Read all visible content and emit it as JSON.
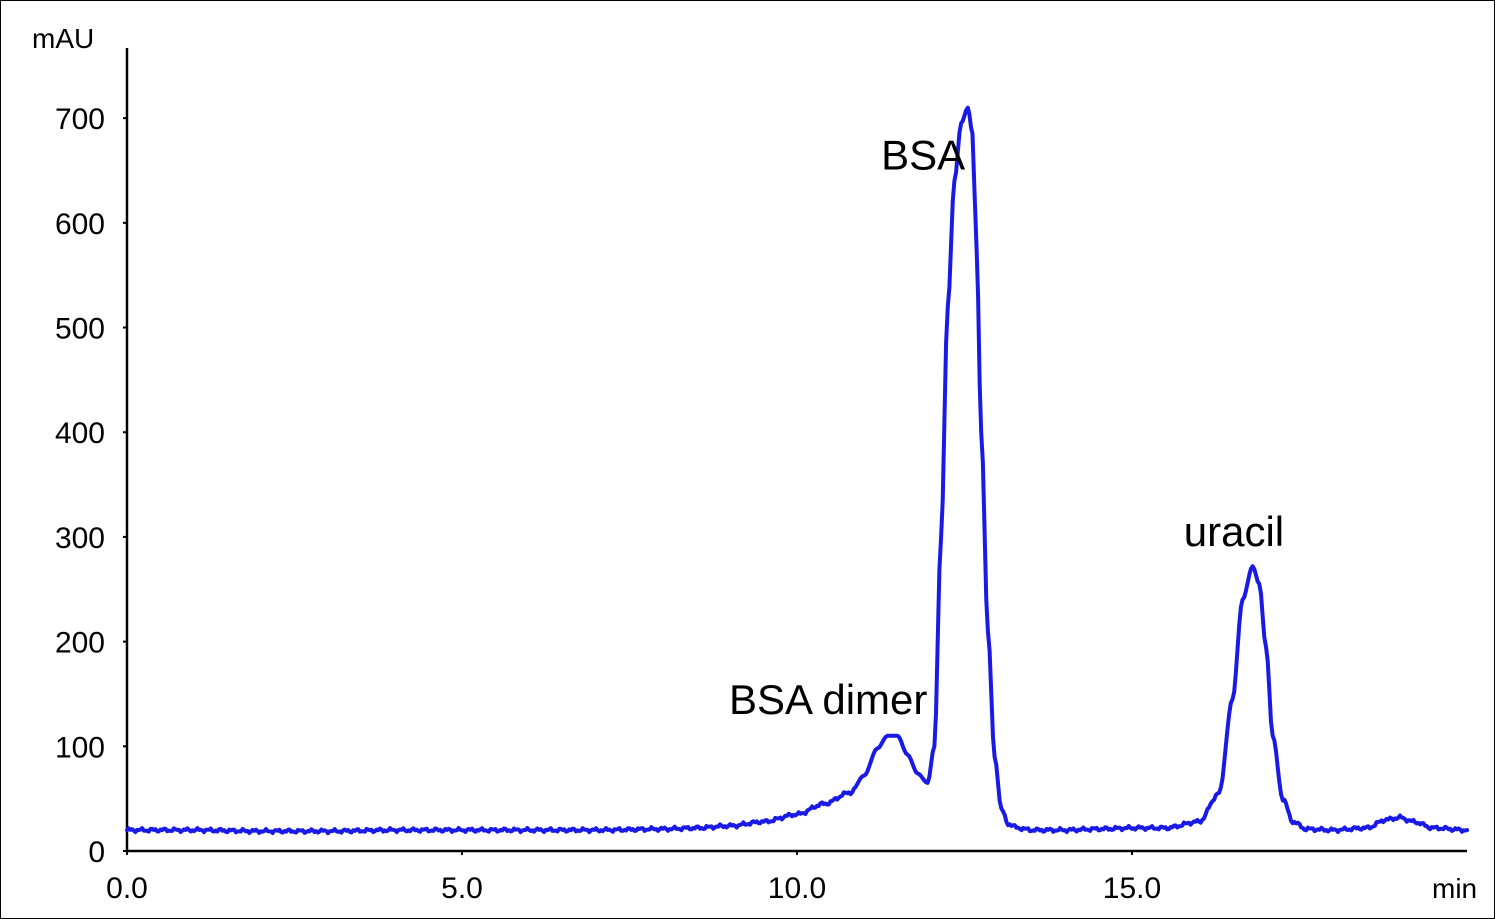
{
  "chart_data": {
    "type": "line",
    "title": "",
    "xlabel": "min",
    "ylabel": "mAU",
    "xlim": [
      0.0,
      20.0
    ],
    "ylim": [
      0,
      700
    ],
    "x_ticks": [
      "0.0",
      "5.0",
      "10.0",
      "15.0"
    ],
    "y_ticks": [
      "0",
      "100",
      "200",
      "300",
      "400",
      "500",
      "600",
      "700"
    ],
    "grid": false,
    "legend": "none",
    "series": [
      {
        "color": "#1a1ae6",
        "x": [
          0.0,
          1.0,
          2.0,
          3.0,
          4.0,
          5.0,
          6.0,
          7.0,
          8.0,
          8.5,
          9.0,
          9.5,
          10.0,
          10.4,
          10.8,
          11.0,
          11.2,
          11.35,
          11.5,
          11.65,
          11.8,
          11.95,
          12.05,
          12.15,
          12.25,
          12.35,
          12.45,
          12.55,
          12.62,
          12.68,
          12.75,
          12.85,
          12.95,
          13.05,
          13.15,
          13.3,
          13.5,
          14.0,
          14.5,
          15.0,
          15.5,
          16.0,
          16.3,
          16.5,
          16.65,
          16.8,
          16.9,
          17.0,
          17.1,
          17.25,
          17.4,
          17.6,
          18.0,
          18.5,
          18.8,
          19.0,
          19.2,
          19.5,
          20.0
        ],
        "y": [
          20,
          20,
          19,
          19,
          20,
          20,
          20,
          20,
          21,
          22,
          24,
          28,
          35,
          45,
          56,
          72,
          98,
          110,
          110,
          92,
          74,
          65,
          100,
          300,
          520,
          640,
          695,
          710,
          685,
          575,
          400,
          210,
          90,
          40,
          26,
          22,
          20,
          20,
          21,
          22,
          22,
          28,
          55,
          145,
          240,
          272,
          255,
          195,
          110,
          50,
          28,
          21,
          20,
          22,
          30,
          32,
          28,
          22,
          20
        ]
      }
    ],
    "annotations": [
      {
        "text": "BSA dimer",
        "x": 11.45,
        "y": 110
      },
      {
        "text": "BSA",
        "x": 12.6,
        "y": 710
      },
      {
        "text": "uracil",
        "x": 16.85,
        "y": 272
      }
    ]
  }
}
